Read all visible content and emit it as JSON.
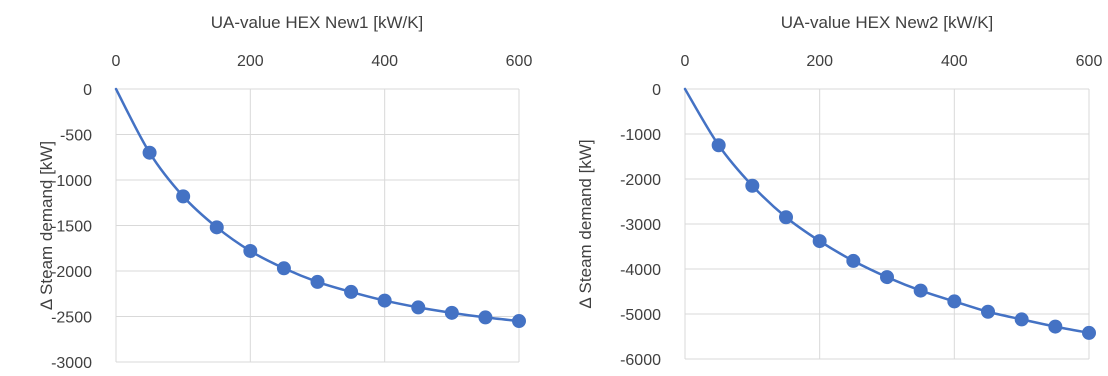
{
  "chart_data": [
    {
      "type": "scatter",
      "xlabel": "UA-value HEX New1 [kW/K]",
      "ylabel": "Δ Steam demand [kW]",
      "xlim": [
        0,
        600
      ],
      "ylim": [
        -3000,
        0
      ],
      "x_ticks": [
        "0",
        "200",
        "400",
        "600"
      ],
      "y_ticks": [
        "0",
        "-500",
        "-1000",
        "-1500",
        "-2000",
        "-2500",
        "-3000"
      ],
      "x_axis_position": "top",
      "grid": true,
      "series": [
        {
          "x": [
            0,
            50,
            100,
            150,
            200,
            250,
            300,
            350,
            400,
            450,
            500,
            550,
            600
          ],
          "values": [
            0,
            -700,
            -1180,
            -1520,
            -1780,
            -1970,
            -2120,
            -2230,
            -2325,
            -2400,
            -2460,
            -2510,
            -2550
          ],
          "color": "#4472c4",
          "marker_first_point": false
        }
      ]
    },
    {
      "type": "scatter",
      "xlabel": "UA-value HEX New2 [kW/K]",
      "ylabel": "Δ Steam demand [kW]",
      "xlim": [
        0,
        600
      ],
      "ylim": [
        -6000,
        0
      ],
      "x_ticks": [
        "0",
        "200",
        "400",
        "600"
      ],
      "y_ticks": [
        "0",
        "-1000",
        "-2000",
        "-3000",
        "-4000",
        "-5000",
        "-6000"
      ],
      "x_axis_position": "top",
      "grid": true,
      "series": [
        {
          "x": [
            0,
            50,
            100,
            150,
            200,
            250,
            300,
            350,
            400,
            450,
            500,
            550,
            600
          ],
          "values": [
            0,
            -1250,
            -2150,
            -2850,
            -3380,
            -3820,
            -4180,
            -4480,
            -4720,
            -4950,
            -5120,
            -5280,
            -5420
          ],
          "color": "#4472c4",
          "marker_first_point": false
        }
      ]
    }
  ]
}
